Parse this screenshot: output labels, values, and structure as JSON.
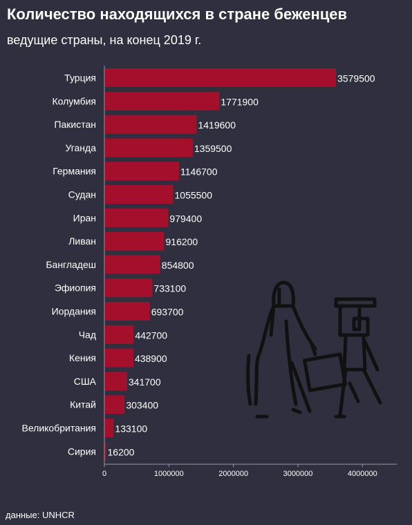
{
  "header": {
    "title": "Количество находящихся в стране беженцев",
    "subtitle": "ведущие страны, на конец 2019 г."
  },
  "footer": {
    "source": "данные: UNHCR"
  },
  "colors": {
    "background": "#2f2f3f",
    "bar": "#a4102c",
    "text": "#ffffff",
    "icon": "#111111"
  },
  "illustration": {
    "icon": "refugees-icon"
  },
  "chart_data": {
    "type": "bar",
    "orientation": "horizontal",
    "categories": [
      "Турция",
      "Колумбия",
      "Пакистан",
      "Уганда",
      "Германия",
      "Судан",
      "Иран",
      "Ливан",
      "Бангладеш",
      "Эфиопия",
      "Иордания",
      "Чад",
      "Кения",
      "США",
      "Китай",
      "Великобритания",
      "Сирия"
    ],
    "values": [
      3579500,
      1771900,
      1419600,
      1359500,
      1146700,
      1055500,
      979400,
      916200,
      854800,
      733100,
      693700,
      442700,
      438900,
      341700,
      303400,
      133100,
      16200
    ],
    "value_labels": [
      "3579500",
      "1771900",
      "1419600",
      "1359500",
      "1146700",
      "1055500",
      "979400",
      "916200",
      "854800",
      "733100",
      "693700",
      "442700",
      "438900",
      "341700",
      "303400",
      "133100",
      "16200"
    ],
    "x_ticks": [
      0,
      1000000,
      2000000,
      3000000,
      4000000
    ],
    "x_tick_labels": [
      "0",
      "1000000",
      "2000000",
      "3000000",
      "4000000"
    ],
    "xlim": [
      0,
      4500000
    ],
    "grid": false
  }
}
